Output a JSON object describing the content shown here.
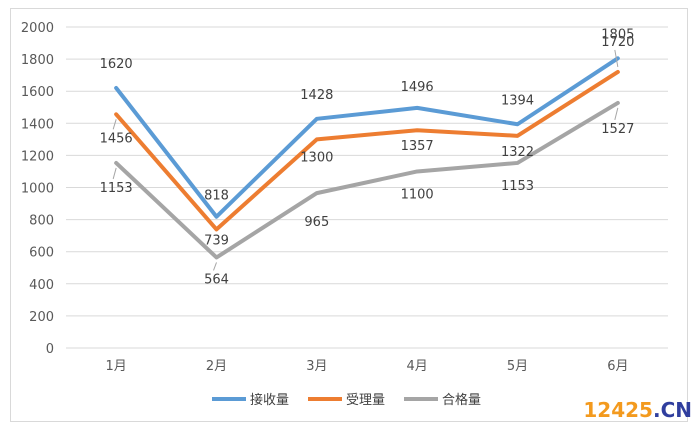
{
  "chart_data": {
    "type": "line",
    "title": "",
    "xlabel": "",
    "ylabel": "",
    "categories": [
      "1月",
      "2月",
      "3月",
      "4月",
      "5月",
      "6月"
    ],
    "ylim": [
      0,
      2000
    ],
    "yticks": [
      0,
      200,
      400,
      600,
      800,
      1000,
      1200,
      1400,
      1600,
      1800,
      2000
    ],
    "grid": true,
    "legend": "bottom",
    "series": [
      {
        "name": "接收量",
        "color": "#5b9bd5",
        "values": [
          1620,
          818,
          1428,
          1496,
          1394,
          1805
        ]
      },
      {
        "name": "受理量",
        "color": "#ed7d31",
        "values": [
          1456,
          739,
          1300,
          1357,
          1322,
          1720
        ]
      },
      {
        "name": "合格量",
        "color": "#a5a5a5",
        "values": [
          1153,
          564,
          965,
          1100,
          1153,
          1527
        ]
      }
    ]
  },
  "watermark": {
    "number": "12425",
    "domain": ".CN"
  }
}
